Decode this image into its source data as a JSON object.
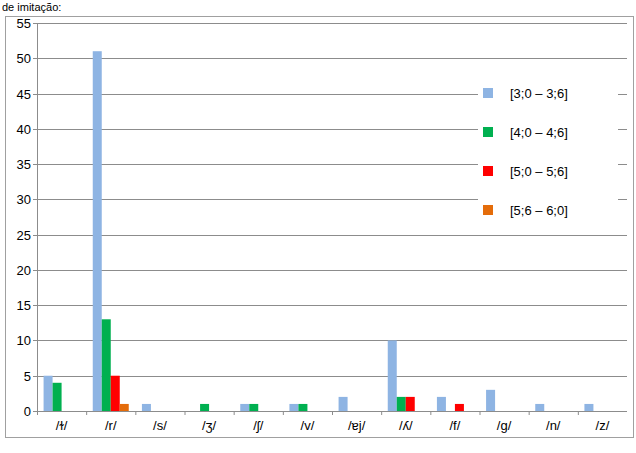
{
  "chart_data": {
    "type": "bar",
    "title": "de imitação:",
    "categories": [
      "/ɫ/",
      "/r/",
      "/s/",
      "/ʒ/",
      "/ʃ/",
      "/v/",
      "/ɐj/",
      "/ʎ/",
      "/f/",
      "/g/",
      "/n/",
      "/z/"
    ],
    "series": [
      {
        "name": "[3;0 – 3;6]",
        "color": "#8eb4e3",
        "values": [
          5,
          51,
          1,
          0,
          1,
          1,
          2,
          10,
          2,
          3,
          1,
          1
        ]
      },
      {
        "name": "[4;0 – 4;6]",
        "color": "#00b050",
        "values": [
          4,
          13,
          0,
          1,
          1,
          1,
          0,
          2,
          0,
          0,
          0,
          0
        ]
      },
      {
        "name": "[5;0 – 5;6]",
        "color": "#ff0000",
        "values": [
          0,
          5,
          0,
          0,
          0,
          0,
          0,
          2,
          1,
          0,
          0,
          0
        ]
      },
      {
        "name": "[5;6 – 6;0]",
        "color": "#e46c0a",
        "values": [
          0,
          1,
          0,
          0,
          0,
          0,
          0,
          0,
          0,
          0,
          0,
          0
        ]
      }
    ],
    "ylim": [
      0,
      55
    ],
    "yticks": [
      0,
      5,
      10,
      15,
      20,
      25,
      30,
      35,
      40,
      45,
      50,
      55
    ],
    "grid": true,
    "legend": "right"
  }
}
